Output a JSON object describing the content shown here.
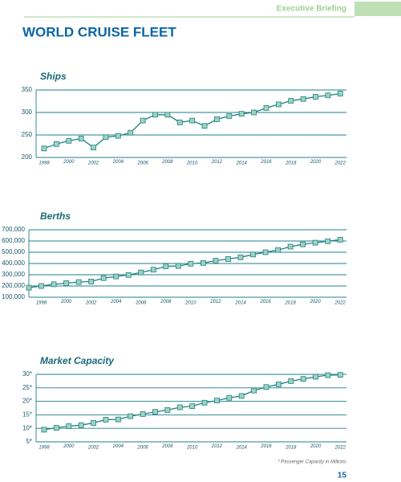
{
  "header": {
    "section": "Executive Briefing",
    "title": "WORLD CRUISE FLEET"
  },
  "footnote": "* Passenger Capacity in Millions",
  "page_number": 15,
  "chart_data": [
    {
      "type": "line",
      "title": "Ships",
      "color": "#1f7f8c",
      "marker_color": "#9fd4b8",
      "grid": true,
      "x": [
        1998,
        1999,
        2000,
        2001,
        2002,
        2003,
        2004,
        2005,
        2006,
        2007,
        2008,
        2009,
        2010,
        2011,
        2012,
        2013,
        2014,
        2015,
        2016,
        2017,
        2018,
        2019,
        2020,
        2021,
        2022
      ],
      "values": [
        220,
        230,
        237,
        242,
        222,
        245,
        248,
        255,
        282,
        295,
        295,
        278,
        282,
        270,
        285,
        292,
        297,
        300,
        310,
        318,
        326,
        330,
        335,
        338,
        342
      ],
      "xlim": [
        1997.35,
        2022.5
      ],
      "xticks": [
        1998,
        2000,
        2002,
        2004,
        2006,
        2008,
        2010,
        2012,
        2014,
        2016,
        2018,
        2020,
        2022
      ],
      "ylim": [
        200,
        350
      ],
      "yticks": [
        200,
        250,
        300,
        350
      ]
    },
    {
      "type": "line",
      "title": "Berths",
      "color": "#1f7f8c",
      "marker_color": "#9fd4b8",
      "grid": true,
      "x": [
        1997,
        1998,
        1999,
        2000,
        2001,
        2002,
        2003,
        2004,
        2005,
        2006,
        2007,
        2008,
        2009,
        2010,
        2011,
        2012,
        2013,
        2014,
        2015,
        2016,
        2017,
        2018,
        2019,
        2020,
        2021,
        2022
      ],
      "values": [
        185000,
        200000,
        215000,
        225000,
        235000,
        240000,
        270000,
        285000,
        298000,
        320000,
        345000,
        375000,
        378000,
        398000,
        405000,
        425000,
        440000,
        455000,
        480000,
        500000,
        520000,
        550000,
        570000,
        585000,
        598000,
        612000
      ],
      "xlim": [
        1997,
        2022.5
      ],
      "xticks": [
        1998,
        2000,
        2002,
        2004,
        2006,
        2008,
        2010,
        2012,
        2014,
        2016,
        2018,
        2020,
        2022
      ],
      "ylim": [
        100000,
        700000
      ],
      "yticks": [
        {
          "value": 100000,
          "label": "100,000"
        },
        {
          "value": 200000,
          "label": "200,000"
        },
        {
          "value": 300000,
          "label": "300,000"
        },
        {
          "value": 400000,
          "label": "400,000"
        },
        {
          "value": 500000,
          "label": "500,000"
        },
        {
          "value": 600000,
          "label": "600,000"
        },
        {
          "value": 700000,
          "label": "700,000"
        }
      ]
    },
    {
      "type": "line",
      "title": "Market Capacity",
      "color": "#1f7f8c",
      "marker_color": "#9fd4b8",
      "grid": true,
      "x": [
        1998,
        1999,
        2000,
        2001,
        2002,
        2003,
        2004,
        2005,
        2006,
        2007,
        2008,
        2009,
        2010,
        2011,
        2012,
        2013,
        2014,
        2015,
        2016,
        2017,
        2018,
        2019,
        2020,
        2021,
        2022
      ],
      "values": [
        9.5,
        10.2,
        10.8,
        11.2,
        12,
        13.2,
        13.3,
        14.5,
        15.3,
        16.1,
        16.8,
        17.8,
        18.2,
        19.5,
        20.3,
        21.3,
        22,
        24,
        25.3,
        26.3,
        27.5,
        28.3,
        29.1,
        29.7,
        29.8
      ],
      "xlim": [
        1997.35,
        2022.5
      ],
      "xticks": [
        1998,
        2000,
        2002,
        2004,
        2006,
        2008,
        2010,
        2012,
        2014,
        2016,
        2018,
        2020,
        2022
      ],
      "ylim": [
        5,
        30
      ],
      "yticks": [
        {
          "value": 5,
          "label": "5*"
        },
        {
          "value": 10,
          "label": "10*"
        },
        {
          "value": 15,
          "label": "15*"
        },
        {
          "value": 20,
          "label": "20*"
        },
        {
          "value": 25,
          "label": "25*"
        },
        {
          "value": 30,
          "label": "30*"
        }
      ]
    }
  ]
}
